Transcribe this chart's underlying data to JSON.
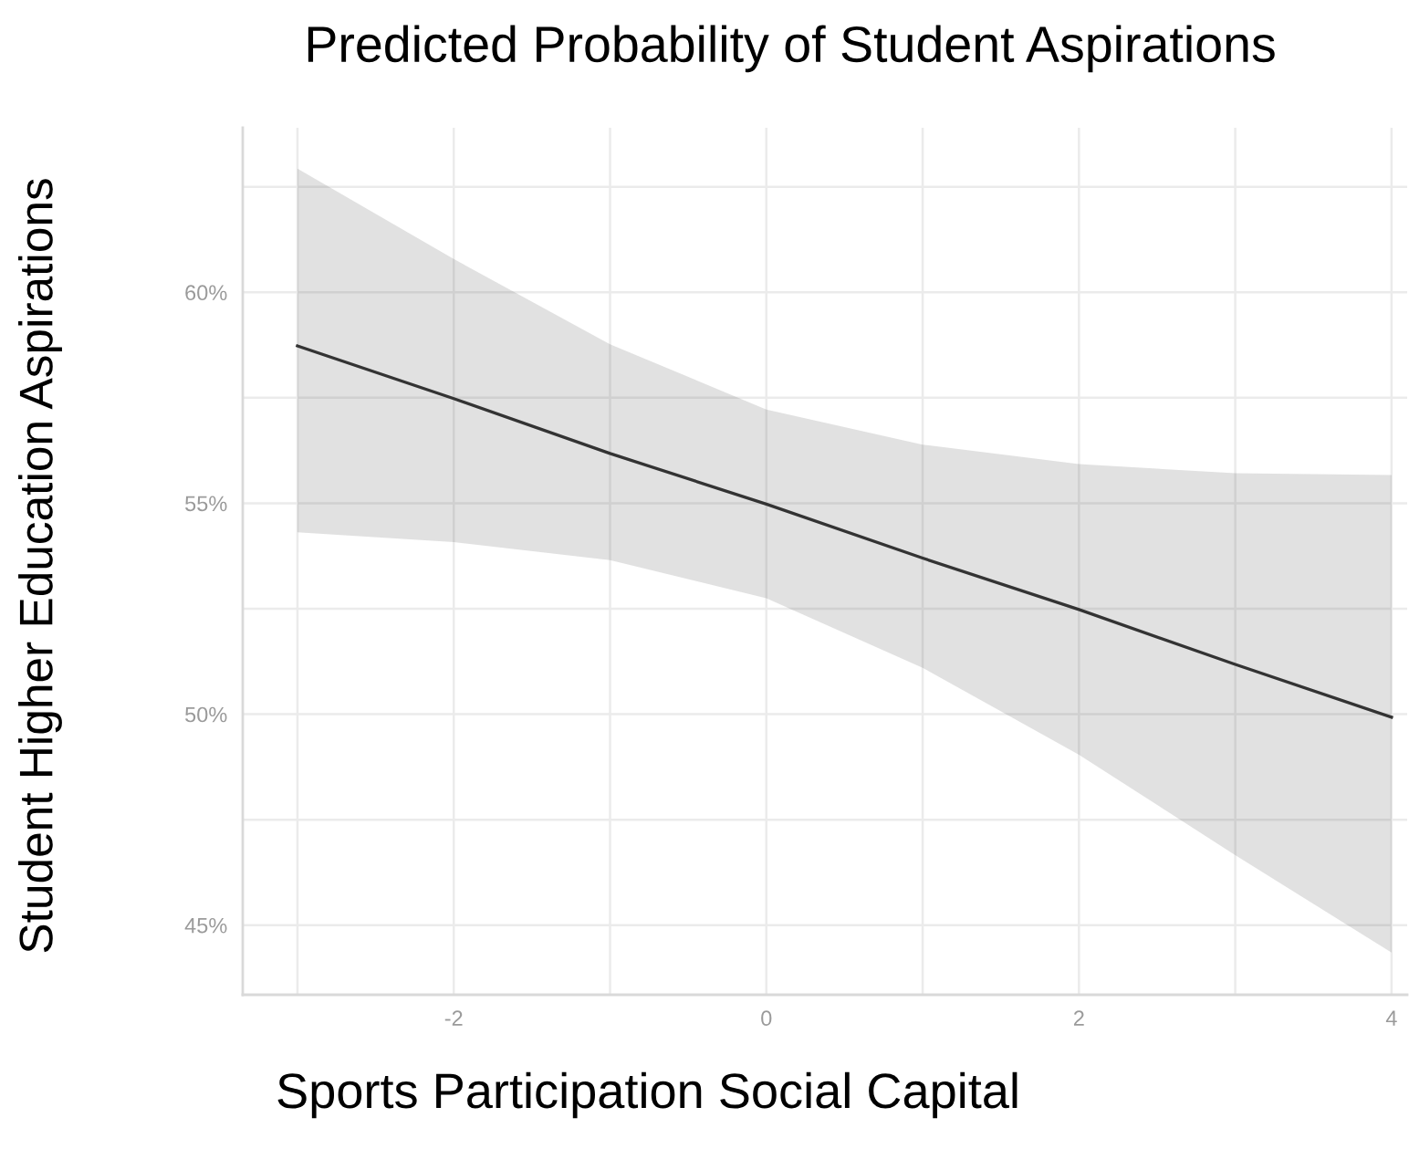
{
  "chart_data": {
    "type": "line",
    "title": "Predicted Probability of Student Aspirations",
    "xlabel": "Sports Participation Social Capital",
    "ylabel": "Student Higher Education Aspirations",
    "series": [
      {
        "color": "#333333",
        "x": [
          -3,
          -2,
          -1,
          0,
          1,
          2,
          3,
          4
        ],
        "values": [
          58.73,
          57.48,
          56.18,
          54.98,
          53.7,
          52.48,
          51.18,
          49.93
        ],
        "lower": [
          54.31,
          54.08,
          53.65,
          52.75,
          51.1,
          49.04,
          46.66,
          44.35
        ],
        "upper": [
          62.93,
          60.79,
          58.77,
          57.22,
          56.39,
          55.93,
          55.71,
          55.67
        ]
      }
    ],
    "xlim": [
      -3.35,
      4.1
    ],
    "ylim": [
      43.35,
      63.9
    ],
    "xticks": [
      -2,
      0,
      2,
      4
    ],
    "yticks": [
      {
        "value": 45,
        "label": "45%"
      },
      {
        "value": 50,
        "label": "50%"
      },
      {
        "value": 55,
        "label": "55%"
      },
      {
        "value": 60,
        "label": "60%"
      }
    ],
    "grid": true
  }
}
